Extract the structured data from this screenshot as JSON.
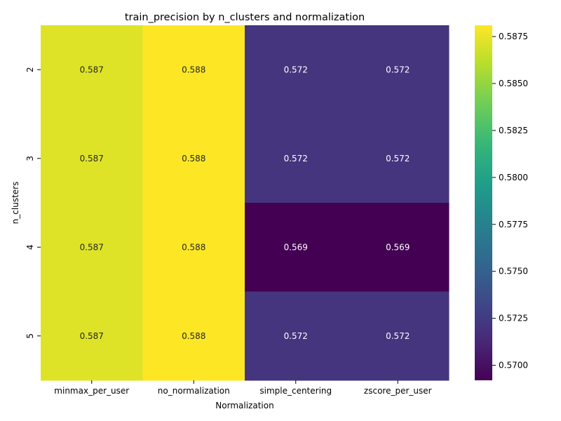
{
  "chart_data": {
    "type": "heatmap",
    "title": "train_precision by n_clusters and normalization",
    "xlabel": "Normalization",
    "ylabel": "n_clusters",
    "x_categories": [
      "minmax_per_user",
      "no_normalization",
      "simple_centering",
      "zscore_per_user"
    ],
    "y_categories": [
      "2",
      "3",
      "4",
      "5"
    ],
    "values": [
      [
        0.5872,
        0.5881,
        0.5721,
        0.5721
      ],
      [
        0.5872,
        0.5881,
        0.5721,
        0.5721
      ],
      [
        0.5872,
        0.5881,
        0.5692,
        0.5692
      ],
      [
        0.5872,
        0.5881,
        0.5721,
        0.5721
      ]
    ],
    "annotations": [
      [
        "0.587",
        "0.588",
        "0.572",
        "0.572"
      ],
      [
        "0.587",
        "0.588",
        "0.572",
        "0.572"
      ],
      [
        "0.587",
        "0.588",
        "0.569",
        "0.569"
      ],
      [
        "0.587",
        "0.588",
        "0.572",
        "0.572"
      ]
    ],
    "colormap": "viridis",
    "colorbar": {
      "vmin": 0.5692,
      "vmax": 0.5881,
      "ticks": [
        0.57,
        0.5725,
        0.575,
        0.5775,
        0.58,
        0.5825,
        0.585,
        0.5875
      ],
      "tick_labels": [
        "0.5700",
        "0.5725",
        "0.5750",
        "0.5775",
        "0.5800",
        "0.5825",
        "0.5850",
        "0.5875"
      ]
    }
  }
}
